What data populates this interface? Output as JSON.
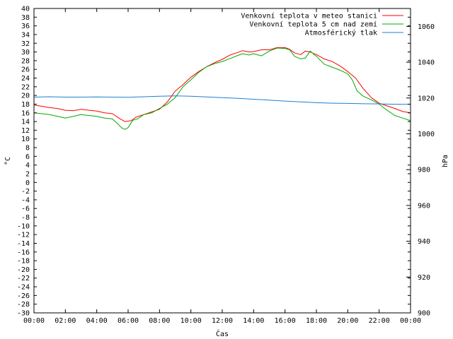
{
  "chart_data": {
    "type": "line",
    "xlabel": "Čas",
    "ylabel": "°C",
    "y2label": "hPa",
    "xlim": [
      0,
      24
    ],
    "ylim": [
      -30,
      40
    ],
    "y2lim": [
      900,
      1070
    ],
    "grid": false,
    "legend_position": "top-right",
    "x_ticks": [
      {
        "v": 0,
        "label": "00:00"
      },
      {
        "v": 2,
        "label": "02:00"
      },
      {
        "v": 4,
        "label": "04:00"
      },
      {
        "v": 6,
        "label": "06:00"
      },
      {
        "v": 8,
        "label": "08:00"
      },
      {
        "v": 10,
        "label": "10:00"
      },
      {
        "v": 12,
        "label": "12:00"
      },
      {
        "v": 14,
        "label": "14:00"
      },
      {
        "v": 16,
        "label": "16:00"
      },
      {
        "v": 18,
        "label": "18:00"
      },
      {
        "v": 20,
        "label": "20:00"
      },
      {
        "v": 22,
        "label": "22:00"
      },
      {
        "v": 24,
        "label": "00:00"
      }
    ],
    "y_ticks": [
      40,
      38,
      36,
      34,
      32,
      30,
      28,
      26,
      24,
      22,
      20,
      18,
      16,
      14,
      12,
      10,
      8,
      6,
      4,
      2,
      0,
      -2,
      -4,
      -6,
      -8,
      -10,
      -12,
      -14,
      -16,
      -18,
      -20,
      -22,
      -24,
      -26,
      -28,
      -30
    ],
    "y2_ticks": [
      1060,
      1040,
      1020,
      1000,
      980,
      960,
      940,
      920,
      900
    ],
    "series": [
      {
        "name": "Venkovní teplota v meteo stanici",
        "color": "#ff0000",
        "axis": "y",
        "x": [
          0,
          0.5,
          1,
          1.5,
          2,
          2.5,
          3,
          3.5,
          4,
          4.5,
          5,
          5.5,
          5.8,
          6.2,
          6.5,
          7,
          7.5,
          8,
          8.5,
          9,
          9.5,
          10,
          10.5,
          11,
          11.5,
          12,
          12.5,
          13,
          13.3,
          13.7,
          14,
          14.5,
          15,
          15.5,
          16,
          16.3,
          16.6,
          17,
          17.3,
          17.6,
          18,
          18.5,
          19,
          19.5,
          20,
          20.5,
          21,
          21.5,
          22,
          22.5,
          23,
          23.5,
          24
        ],
        "y": [
          17.8,
          17.5,
          17.2,
          17,
          16.6,
          16.5,
          16.8,
          16.6,
          16.4,
          16,
          15.8,
          14.6,
          14,
          14.2,
          15,
          15.6,
          16.2,
          16.8,
          18.5,
          21,
          22.5,
          24.2,
          25.5,
          26.6,
          27.5,
          28.3,
          29.3,
          29.9,
          30.3,
          30,
          30.1,
          30.5,
          30.5,
          31,
          31,
          30.6,
          29.8,
          29.4,
          30.2,
          30,
          29.4,
          28.4,
          27.8,
          26.8,
          25.5,
          24,
          21.5,
          19.5,
          18.2,
          17.6,
          17,
          16.3,
          16
        ]
      },
      {
        "name": "Venkovní teplota 5 cm nad zemí",
        "color": "#00aa00",
        "axis": "y",
        "x": [
          0,
          0.5,
          1,
          1.5,
          2,
          2.5,
          3,
          3.5,
          4,
          4.5,
          5,
          5.3,
          5.6,
          5.8,
          6,
          6.3,
          6.6,
          7,
          7.5,
          8,
          8.5,
          9,
          9.5,
          10,
          10.5,
          11,
          11.5,
          12,
          12.5,
          13,
          13.3,
          13.7,
          14,
          14.5,
          15,
          15.5,
          16,
          16.3,
          16.6,
          17,
          17.3,
          17.6,
          18,
          18.5,
          19,
          19.5,
          20,
          20.3,
          20.6,
          21,
          21.5,
          22,
          22.5,
          23,
          23.5,
          24
        ],
        "y": [
          16,
          15.8,
          15.6,
          15.2,
          14.8,
          15.2,
          15.6,
          15.4,
          15.2,
          14.8,
          14.6,
          13.6,
          12.5,
          12.2,
          12.6,
          14.3,
          14.6,
          15.6,
          16,
          17,
          18,
          19.5,
          22,
          23.6,
          25.3,
          26.6,
          27.3,
          27.8,
          28.5,
          29.2,
          29.6,
          29.3,
          29.6,
          29.1,
          30.2,
          30.9,
          30.8,
          30.5,
          29,
          28.4,
          28.6,
          30.2,
          29,
          27.2,
          26.5,
          25.8,
          25,
          23.5,
          21,
          19.8,
          19,
          18,
          16.6,
          15.4,
          14.8,
          14.2
        ]
      },
      {
        "name": "Atmosférický tlak",
        "color": "#1e7fd4",
        "axis": "y2",
        "x": [
          0,
          1,
          2,
          3,
          4,
          5,
          6,
          7,
          8,
          9,
          10,
          11,
          12,
          13,
          14,
          15,
          16,
          17,
          18,
          19,
          20,
          21,
          22,
          23,
          24
        ],
        "y": [
          1020.5,
          1020.7,
          1020.5,
          1020.5,
          1020.6,
          1020.5,
          1020.4,
          1020.7,
          1021,
          1021.2,
          1021,
          1020.6,
          1020.2,
          1019.8,
          1019.3,
          1018.8,
          1018.3,
          1017.8,
          1017.4,
          1017.1,
          1017,
          1016.8,
          1016.7,
          1016.5,
          1016.5
        ]
      }
    ]
  }
}
